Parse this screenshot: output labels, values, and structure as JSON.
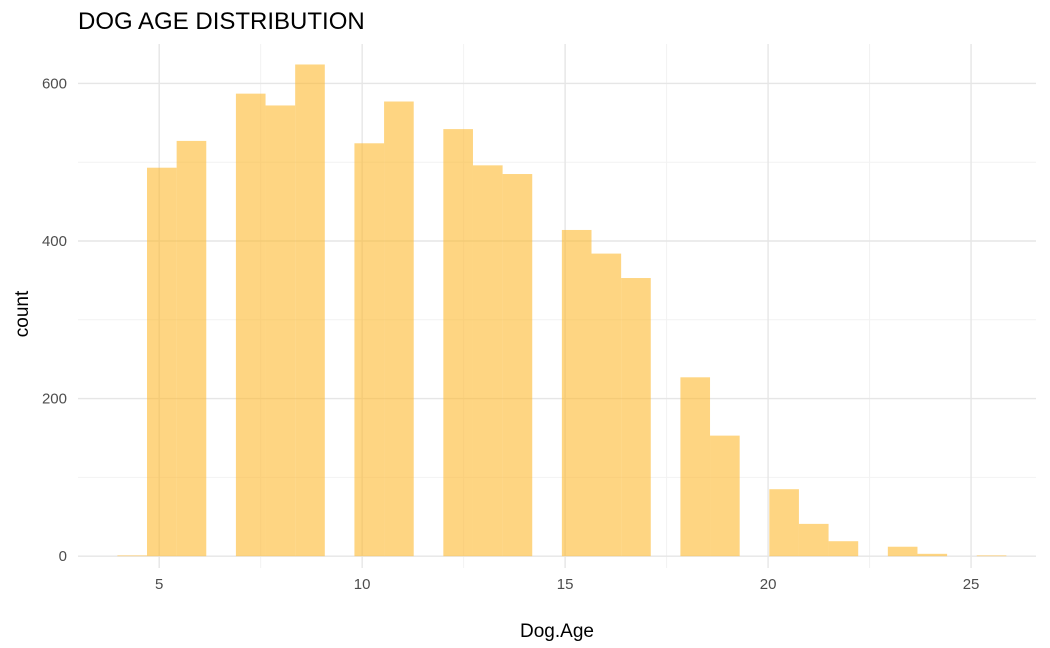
{
  "chart_data": {
    "type": "bar",
    "title": "DOG AGE DISTRIBUTION",
    "xlabel": "Dog.Age",
    "ylabel": "count",
    "xlim": [
      3,
      26.6
    ],
    "ylim": [
      -15,
      650
    ],
    "x_ticks": [
      5,
      10,
      15,
      20,
      25
    ],
    "y_ticks": [
      0,
      200,
      400,
      600
    ],
    "grid": true,
    "bar_color": "#FDB92E",
    "bar_opacity": 0.6,
    "bin_width": 0.73,
    "bins": [
      {
        "x0": 3.97,
        "value": 1
      },
      {
        "x0": 4.7,
        "value": 493
      },
      {
        "x0": 5.43,
        "value": 527
      },
      {
        "x0": 6.16,
        "value": 0
      },
      {
        "x0": 6.89,
        "value": 587
      },
      {
        "x0": 7.62,
        "value": 572
      },
      {
        "x0": 8.35,
        "value": 624
      },
      {
        "x0": 9.08,
        "value": 0
      },
      {
        "x0": 9.81,
        "value": 524
      },
      {
        "x0": 10.54,
        "value": 577
      },
      {
        "x0": 11.27,
        "value": 0
      },
      {
        "x0": 12.0,
        "value": 542
      },
      {
        "x0": 12.73,
        "value": 496
      },
      {
        "x0": 13.46,
        "value": 485
      },
      {
        "x0": 14.19,
        "value": 0
      },
      {
        "x0": 14.92,
        "value": 414
      },
      {
        "x0": 15.65,
        "value": 384
      },
      {
        "x0": 16.38,
        "value": 353
      },
      {
        "x0": 17.11,
        "value": 0
      },
      {
        "x0": 17.84,
        "value": 227
      },
      {
        "x0": 18.57,
        "value": 153
      },
      {
        "x0": 19.3,
        "value": 0
      },
      {
        "x0": 20.03,
        "value": 85
      },
      {
        "x0": 20.76,
        "value": 41
      },
      {
        "x0": 21.49,
        "value": 19
      },
      {
        "x0": 22.22,
        "value": 0
      },
      {
        "x0": 22.95,
        "value": 12
      },
      {
        "x0": 23.68,
        "value": 3
      },
      {
        "x0": 24.41,
        "value": 0
      },
      {
        "x0": 25.14,
        "value": 1
      }
    ]
  }
}
